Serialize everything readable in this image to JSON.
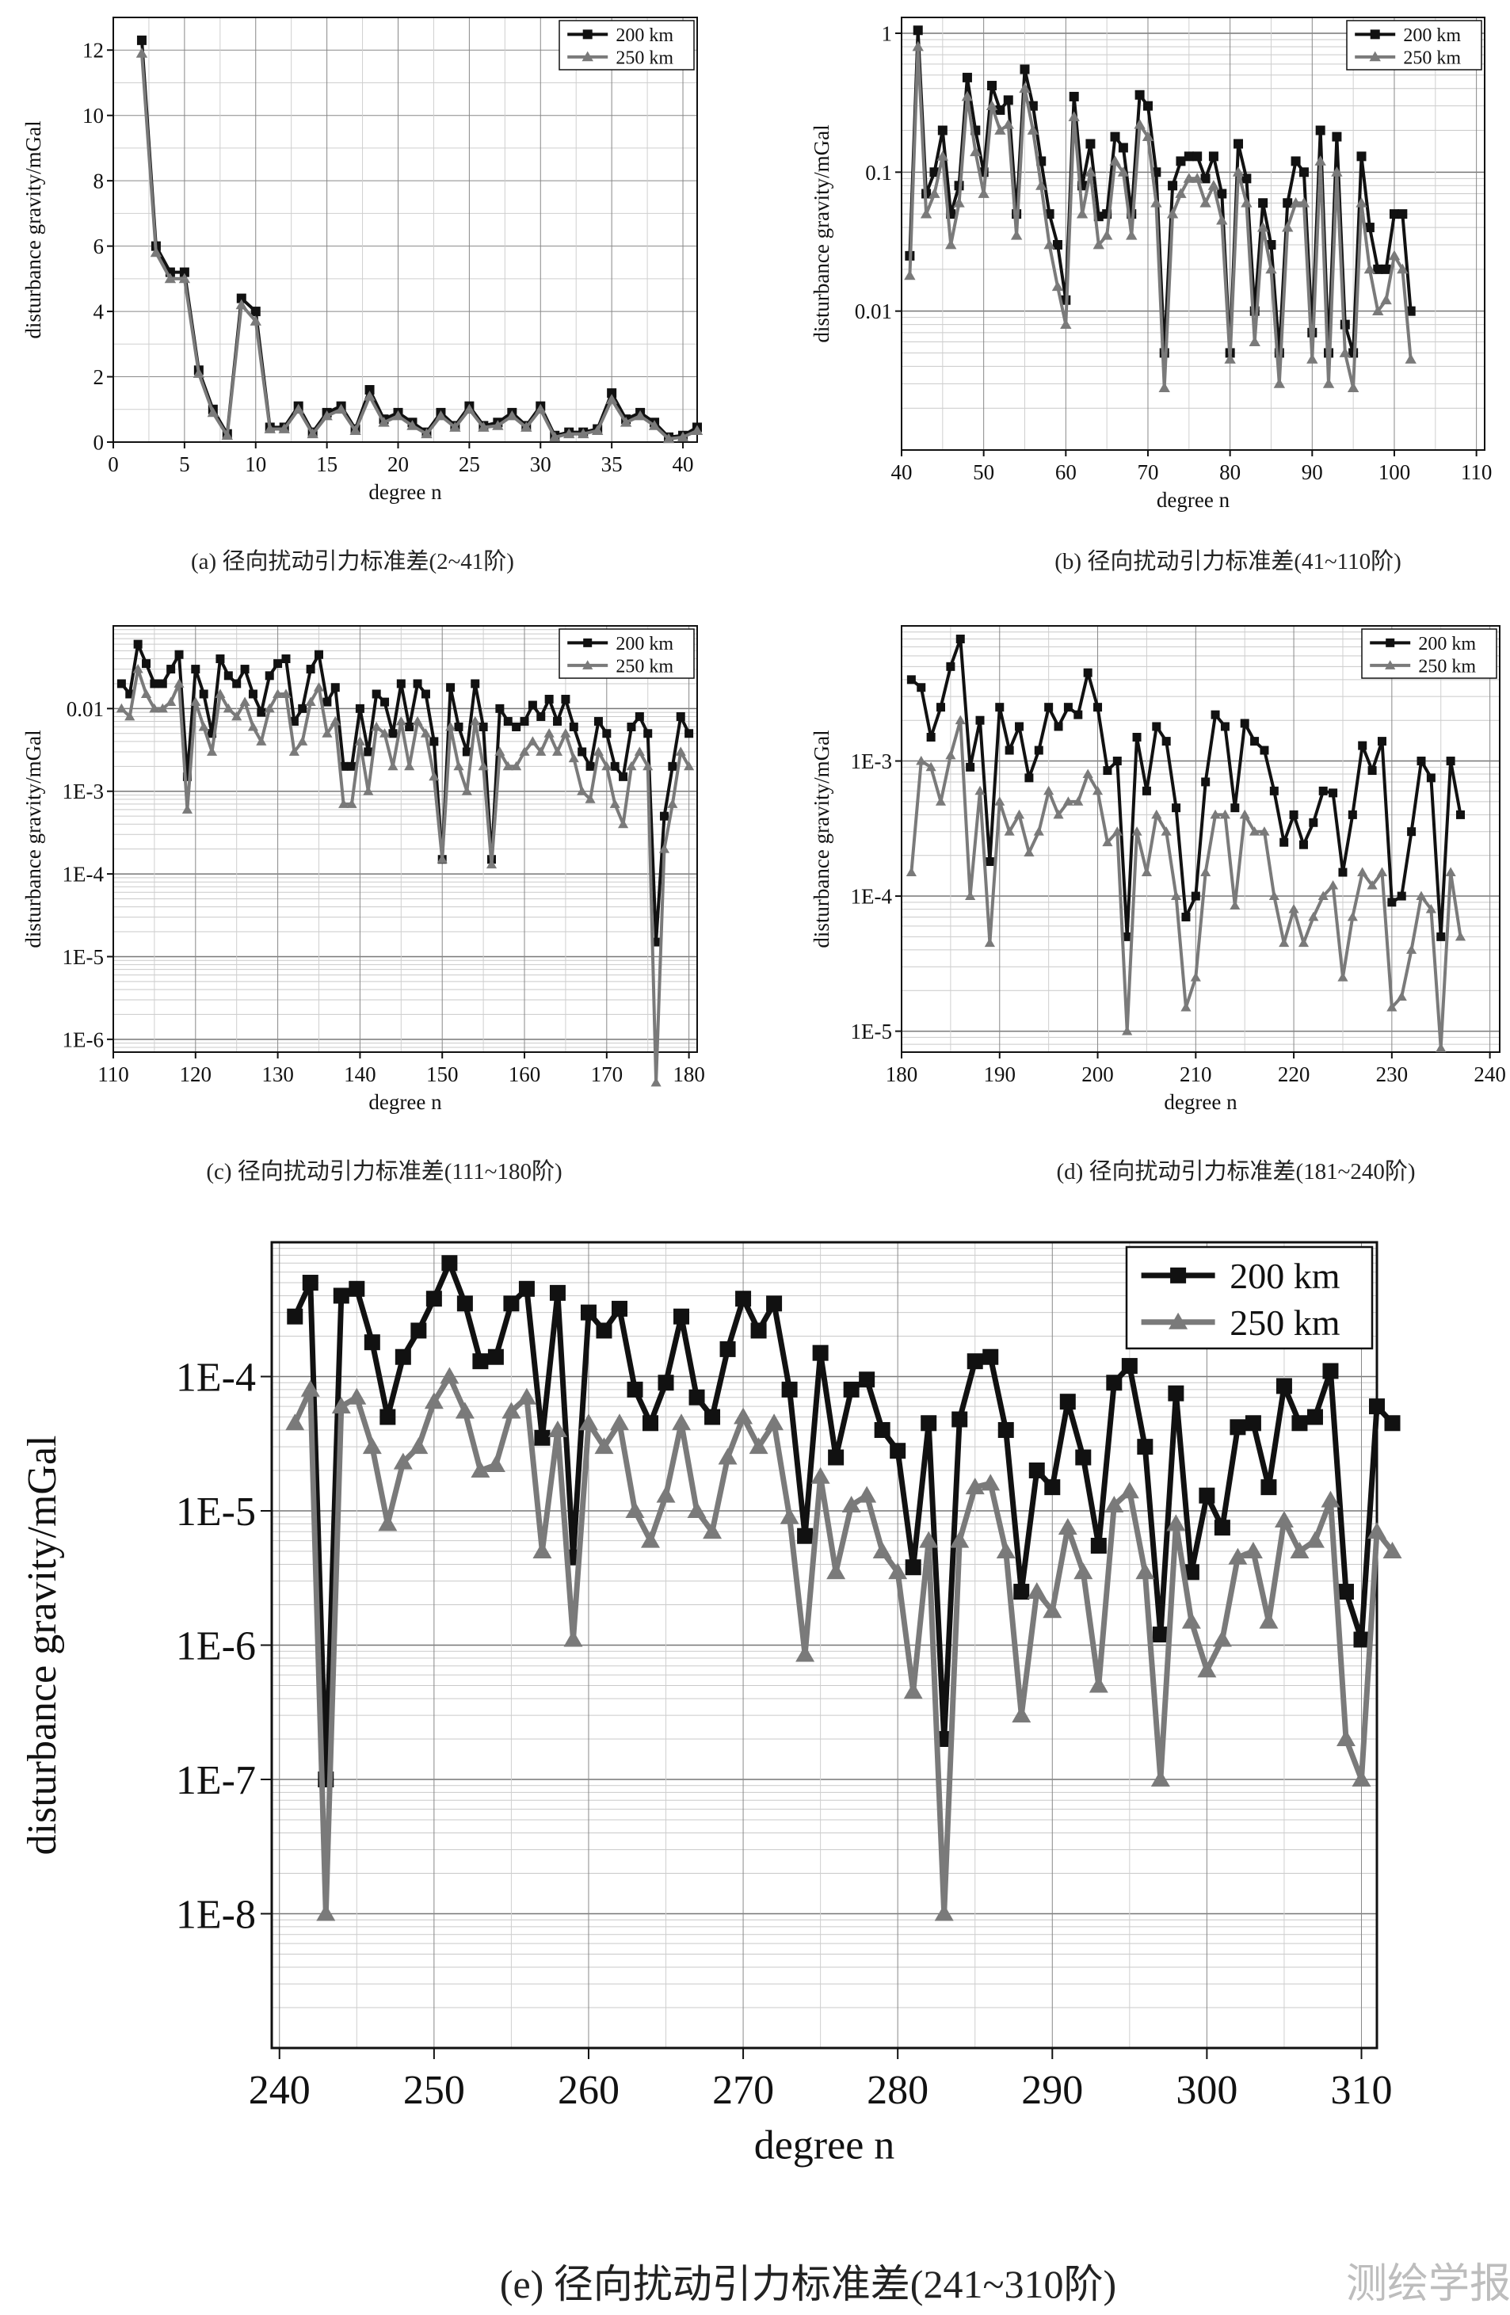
{
  "watermark": "测绘学报",
  "chart_data": [
    {
      "type": "line",
      "caption": "(a) 径向扰动引力标准差(2~41阶)",
      "xlabel": "degree n",
      "ylabel": "disturbance gravity/mGal",
      "scale": "linear",
      "xlim": [
        0,
        41
      ],
      "ylim": [
        0,
        13
      ],
      "xticks": [
        "0",
        "5",
        "10",
        "15",
        "20",
        "25",
        "30",
        "35",
        "40"
      ],
      "yticks": [
        "0",
        "2",
        "4",
        "6",
        "8",
        "10",
        "12"
      ],
      "grid": true,
      "legend_position": "top-right",
      "x_start": 2,
      "series": [
        {
          "name": "200 km",
          "color": "#111111",
          "marker": "square",
          "values": [
            12.3,
            6.0,
            5.2,
            5.2,
            2.2,
            1.0,
            0.25,
            4.4,
            4.0,
            0.45,
            0.45,
            1.1,
            0.3,
            0.9,
            1.1,
            0.4,
            1.6,
            0.7,
            0.9,
            0.6,
            0.3,
            0.9,
            0.5,
            1.1,
            0.5,
            0.6,
            0.9,
            0.5,
            1.1,
            0.2,
            0.3,
            0.3,
            0.4,
            1.5,
            0.7,
            0.9,
            0.6,
            0.15,
            0.2,
            0.45
          ]
        },
        {
          "name": "250 km",
          "color": "#7a7a7a",
          "marker": "triangle",
          "values": [
            11.9,
            5.8,
            5.0,
            5.0,
            2.1,
            0.9,
            0.2,
            4.2,
            3.7,
            0.4,
            0.4,
            1.0,
            0.25,
            0.8,
            1.0,
            0.35,
            1.4,
            0.6,
            0.8,
            0.5,
            0.25,
            0.8,
            0.45,
            1.0,
            0.45,
            0.5,
            0.8,
            0.45,
            1.0,
            0.15,
            0.25,
            0.25,
            0.35,
            1.3,
            0.6,
            0.8,
            0.5,
            0.1,
            0.15,
            0.35
          ]
        }
      ]
    },
    {
      "type": "line",
      "caption": "(b) 径向扰动引力标准差(41~110阶)",
      "xlabel": "degree n",
      "ylabel": "disturbance gravity/mGal",
      "scale": "log",
      "xlim": [
        40,
        111
      ],
      "ylim": [
        0.001,
        1.3
      ],
      "xticks": [
        "40",
        "50",
        "60",
        "70",
        "80",
        "90",
        "100",
        "110"
      ],
      "yticks": [
        "0.01",
        "0.1",
        "1"
      ],
      "grid": true,
      "legend_position": "top-right",
      "x_start": 41,
      "series": [
        {
          "name": "200 km",
          "color": "#111111",
          "marker": "square",
          "values": [
            0.025,
            1.05,
            0.07,
            0.1,
            0.2,
            0.05,
            0.08,
            0.48,
            0.2,
            0.1,
            0.42,
            0.28,
            0.33,
            0.05,
            0.55,
            0.3,
            0.12,
            0.05,
            0.03,
            0.012,
            0.35,
            0.08,
            0.16,
            0.048,
            0.05,
            0.18,
            0.15,
            0.05,
            0.36,
            0.3,
            0.1,
            0.005,
            0.08,
            0.12,
            0.13,
            0.13,
            0.09,
            0.13,
            0.07,
            0.005,
            0.16,
            0.09,
            0.01,
            0.06,
            0.03,
            0.005,
            0.06,
            0.12,
            0.1,
            0.007,
            0.2,
            0.005,
            0.18,
            0.008,
            0.005,
            0.13,
            0.04,
            0.02,
            0.02,
            0.05,
            0.05,
            0.01
          ]
        },
        {
          "name": "250 km",
          "color": "#7a7a7a",
          "marker": "triangle",
          "values": [
            0.018,
            0.8,
            0.05,
            0.07,
            0.13,
            0.03,
            0.06,
            0.35,
            0.14,
            0.07,
            0.3,
            0.2,
            0.22,
            0.035,
            0.4,
            0.2,
            0.08,
            0.03,
            0.015,
            0.008,
            0.25,
            0.05,
            0.1,
            0.03,
            0.035,
            0.12,
            0.1,
            0.035,
            0.22,
            0.18,
            0.06,
            0.0028,
            0.05,
            0.07,
            0.09,
            0.09,
            0.06,
            0.08,
            0.045,
            0.0045,
            0.1,
            0.06,
            0.006,
            0.04,
            0.02,
            0.003,
            0.04,
            0.06,
            0.06,
            0.0045,
            0.12,
            0.003,
            0.1,
            0.005,
            0.0028,
            0.06,
            0.02,
            0.01,
            0.012,
            0.025,
            0.02,
            0.0045
          ]
        }
      ]
    },
    {
      "type": "line",
      "caption": "(c) 径向扰动引力标准差(111~180阶)",
      "xlabel": "degree n",
      "ylabel": "disturbance gravity/mGal",
      "scale": "log",
      "xlim": [
        110,
        181
      ],
      "ylim": [
        7e-07,
        0.1
      ],
      "xticks": [
        "110",
        "120",
        "130",
        "140",
        "150",
        "160",
        "170",
        "180"
      ],
      "yticks": [
        "1E-6",
        "1E-5",
        "1E-4",
        "1E-3",
        "0.01"
      ],
      "grid": true,
      "legend_position": "top-right",
      "x_start": 111,
      "series": [
        {
          "name": "200 km",
          "color": "#111111",
          "marker": "square",
          "values": [
            0.02,
            0.015,
            0.06,
            0.035,
            0.02,
            0.02,
            0.03,
            0.045,
            0.0015,
            0.03,
            0.015,
            0.005,
            0.04,
            0.025,
            0.02,
            0.03,
            0.015,
            0.009,
            0.025,
            0.035,
            0.04,
            0.007,
            0.01,
            0.03,
            0.045,
            0.012,
            0.018,
            0.002,
            0.002,
            0.01,
            0.003,
            0.015,
            0.012,
            0.005,
            0.02,
            0.006,
            0.02,
            0.015,
            0.004,
            0.00015,
            0.018,
            0.006,
            0.003,
            0.02,
            0.006,
            0.00015,
            0.01,
            0.007,
            0.006,
            0.007,
            0.011,
            0.008,
            0.013,
            0.007,
            0.013,
            0.006,
            0.003,
            0.002,
            0.007,
            0.005,
            0.002,
            0.0015,
            0.006,
            0.008,
            0.005,
            1.5e-05,
            0.0005,
            0.002,
            0.008,
            0.005
          ]
        },
        {
          "name": "250 km",
          "color": "#7a7a7a",
          "marker": "triangle",
          "values": [
            0.01,
            0.008,
            0.03,
            0.015,
            0.01,
            0.01,
            0.012,
            0.02,
            0.0006,
            0.012,
            0.006,
            0.003,
            0.015,
            0.01,
            0.008,
            0.012,
            0.006,
            0.004,
            0.01,
            0.015,
            0.015,
            0.003,
            0.004,
            0.012,
            0.018,
            0.005,
            0.007,
            0.0007,
            0.0007,
            0.004,
            0.001,
            0.006,
            0.005,
            0.002,
            0.007,
            0.002,
            0.007,
            0.005,
            0.0015,
            0.00015,
            0.006,
            0.002,
            0.001,
            0.007,
            0.002,
            0.00013,
            0.003,
            0.002,
            0.002,
            0.003,
            0.004,
            0.003,
            0.005,
            0.003,
            0.005,
            0.0025,
            0.001,
            0.0008,
            0.003,
            0.002,
            0.0007,
            0.0004,
            0.002,
            0.003,
            0.002,
            3e-07,
            0.0002,
            0.0007,
            0.003,
            0.002
          ]
        }
      ]
    },
    {
      "type": "line",
      "caption": "(d) 径向扰动引力标准差(181~240阶)",
      "xlabel": "degree n",
      "ylabel": "disturbance gravity/mGal",
      "scale": "log",
      "xlim": [
        180,
        241
      ],
      "ylim": [
        7e-06,
        0.01
      ],
      "xticks": [
        "180",
        "190",
        "200",
        "210",
        "220",
        "230",
        "240"
      ],
      "yticks": [
        "1E-5",
        "1E-4",
        "1E-3"
      ],
      "grid": true,
      "legend_position": "top-right",
      "x_start": 181,
      "series": [
        {
          "name": "200 km",
          "color": "#111111",
          "marker": "square",
          "values": [
            0.004,
            0.0035,
            0.0015,
            0.0025,
            0.005,
            0.008,
            0.0009,
            0.002,
            0.00018,
            0.0025,
            0.0012,
            0.0018,
            0.00075,
            0.0012,
            0.0025,
            0.0018,
            0.0025,
            0.0022,
            0.0045,
            0.0025,
            0.00085,
            0.001,
            5e-05,
            0.0015,
            0.0006,
            0.0018,
            0.0014,
            0.00045,
            7e-05,
            0.0001,
            0.0007,
            0.0022,
            0.0018,
            0.00045,
            0.0019,
            0.0014,
            0.0012,
            0.0006,
            0.00025,
            0.0004,
            0.00024,
            0.00035,
            0.0006,
            0.00058,
            0.00015,
            0.0004,
            0.0013,
            0.00085,
            0.0014,
            9e-05,
            0.0001,
            0.0003,
            0.001,
            0.00075,
            5e-05,
            0.001,
            0.0004
          ]
        },
        {
          "name": "250 km",
          "color": "#7a7a7a",
          "marker": "triangle",
          "values": [
            0.00015,
            0.001,
            0.0009,
            0.0005,
            0.0011,
            0.002,
            0.0001,
            0.0006,
            4.5e-05,
            0.0005,
            0.0003,
            0.0004,
            0.00021,
            0.0003,
            0.0006,
            0.0004,
            0.0005,
            0.0005,
            0.0008,
            0.0006,
            0.00025,
            0.0003,
            1e-05,
            0.0003,
            0.00015,
            0.0004,
            0.0003,
            0.0001,
            1.5e-05,
            2.5e-05,
            0.00015,
            0.0004,
            0.0004,
            8.5e-05,
            0.0004,
            0.0003,
            0.0003,
            0.0001,
            4.5e-05,
            8e-05,
            4.5e-05,
            7e-05,
            0.0001,
            0.00012,
            2.5e-05,
            7e-05,
            0.00015,
            0.00012,
            0.00015,
            1.5e-05,
            1.8e-05,
            4e-05,
            0.0001,
            8e-05,
            7.5e-06,
            0.00015,
            5e-05
          ]
        }
      ]
    },
    {
      "type": "line",
      "caption": "(e) 径向扰动引力标准差(241~310阶)",
      "xlabel": "degree n",
      "ylabel": "disturbance gravity/mGal",
      "scale": "log",
      "xlim": [
        239.5,
        311
      ],
      "ylim": [
        1e-09,
        0.001
      ],
      "xticks": [
        "240",
        "250",
        "260",
        "270",
        "280",
        "290",
        "300",
        "310"
      ],
      "yticks": [
        "1E-8",
        "1E-7",
        "1E-6",
        "1E-5",
        "1E-4"
      ],
      "grid": true,
      "legend_position": "top-right",
      "x_start": 241,
      "series": [
        {
          "name": "200 km",
          "color": "#111111",
          "marker": "square",
          "values": [
            0.00028,
            0.0005,
            1e-07,
            0.0004,
            0.00045,
            0.00018,
            5e-05,
            0.00014,
            0.00022,
            0.00038,
            0.0007,
            0.00035,
            0.00013,
            0.00014,
            0.00035,
            0.00045,
            3.5e-05,
            0.00042,
            4.5e-06,
            0.0003,
            0.00022,
            0.00032,
            8e-05,
            4.5e-05,
            9e-05,
            0.00028,
            7e-05,
            5e-05,
            0.00016,
            0.00038,
            0.00022,
            0.00035,
            8e-05,
            6.5e-06,
            0.00015,
            2.5e-05,
            8e-05,
            9.5e-05,
            4e-05,
            2.8e-05,
            3.8e-06,
            4.5e-05,
            2e-07,
            4.8e-05,
            0.00013,
            0.00014,
            4e-05,
            2.5e-06,
            2e-05,
            1.5e-05,
            6.5e-05,
            2.5e-05,
            5.5e-06,
            9e-05,
            0.00012,
            3e-05,
            1.2e-06,
            7.5e-05,
            3.5e-06,
            1.3e-05,
            7.5e-06,
            4.2e-05,
            4.5e-05,
            1.5e-05,
            8.5e-05,
            4.5e-05,
            5e-05,
            0.00011,
            2.5e-06,
            1.1e-06,
            6e-05,
            4.5e-05
          ]
        },
        {
          "name": "250 km",
          "color": "#7a7a7a",
          "marker": "triangle",
          "values": [
            4.5e-05,
            8e-05,
            1e-08,
            6e-05,
            7e-05,
            3e-05,
            8e-06,
            2.3e-05,
            3e-05,
            6.5e-05,
            0.0001,
            5.5e-05,
            2e-05,
            2.2e-05,
            5.5e-05,
            7e-05,
            5e-06,
            4e-05,
            1.1e-06,
            4.5e-05,
            3e-05,
            4.5e-05,
            1e-05,
            6e-06,
            1.3e-05,
            4.5e-05,
            1e-05,
            7e-06,
            2.5e-05,
            5e-05,
            3e-05,
            4.5e-05,
            9e-06,
            8.5e-07,
            1.8e-05,
            3.5e-06,
            1.1e-05,
            1.3e-05,
            5e-06,
            3.5e-06,
            4.5e-07,
            6e-06,
            1e-08,
            6e-06,
            1.5e-05,
            1.6e-05,
            5e-06,
            3e-07,
            2.5e-06,
            1.8e-06,
            7.5e-06,
            3.5e-06,
            5e-07,
            1.1e-05,
            1.4e-05,
            3.5e-06,
            1e-07,
            8e-06,
            1.5e-06,
            6.5e-07,
            1.1e-06,
            4.5e-06,
            5e-06,
            1.5e-06,
            8.5e-06,
            5e-06,
            6e-06,
            1.2e-05,
            2e-07,
            1e-07,
            7e-06,
            5e-06
          ]
        }
      ]
    }
  ]
}
